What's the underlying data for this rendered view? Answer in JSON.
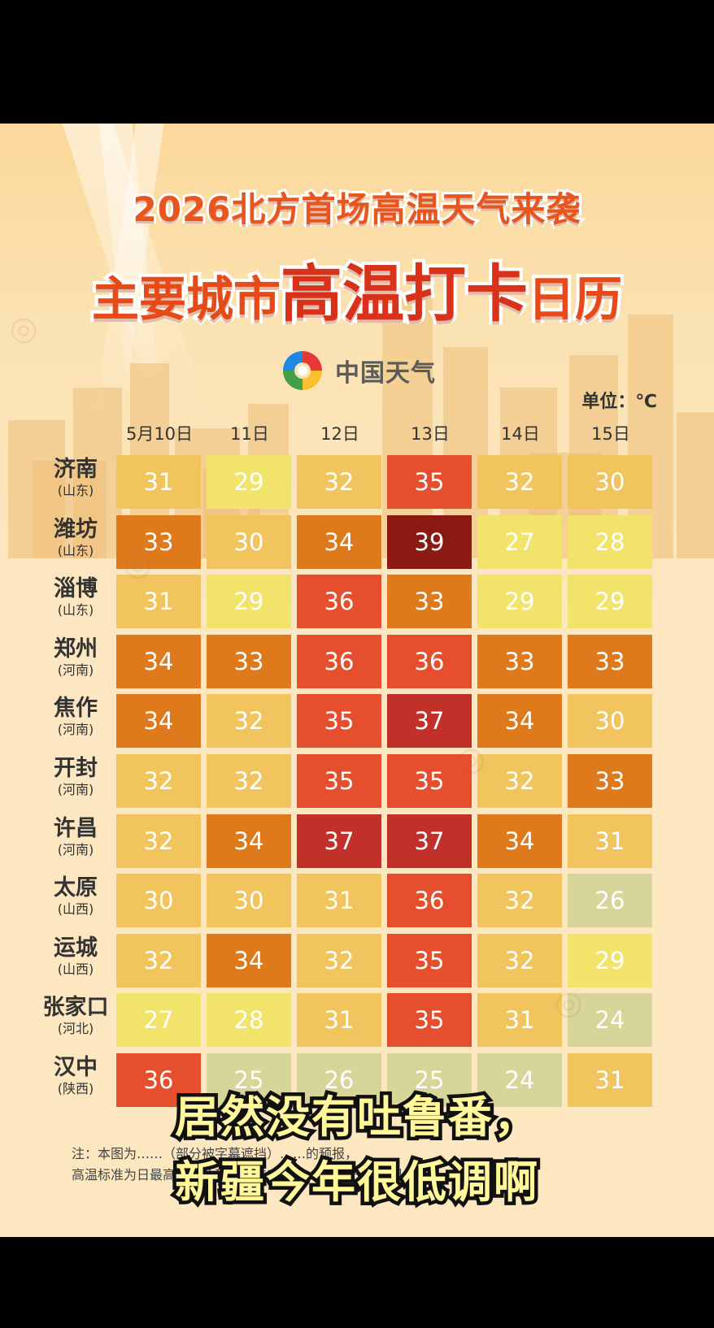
{
  "title_line1": "2026北方首场高温天气来袭",
  "title_line2_a": "主要城市",
  "title_line2_b": "高温打卡",
  "title_line2_c": "日历",
  "logo_text": "中国天气",
  "unit_label": "单位：℃",
  "note_line1": "注：本图为……（部分被字幕遮挡）……的预报，",
  "note_line2": "高温标准为日最高气温达到或超过35℃。中国天气网制图。",
  "caption_line1": "居然没有吐鲁番，",
  "caption_line2": "新疆今年很低调啊",
  "colors": {
    "scale": [
      "#d7d59a",
      "#f2e46a",
      "#f2c45e",
      "#de7a1c",
      "#e64f2e",
      "#c2302a",
      "#8b1a12"
    ]
  },
  "chart_data": {
    "type": "heatmap",
    "title": "2026北方首场高温天气来袭 主要城市高温打卡日历",
    "unit": "℃",
    "columns": [
      "5月10日",
      "11日",
      "12日",
      "13日",
      "14日",
      "15日"
    ],
    "rows": [
      {
        "city": "济南",
        "province": "(山东)",
        "values": [
          31,
          29,
          32,
          35,
          32,
          30
        ]
      },
      {
        "city": "潍坊",
        "province": "(山东)",
        "values": [
          33,
          30,
          34,
          39,
          27,
          28
        ]
      },
      {
        "city": "淄博",
        "province": "(山东)",
        "values": [
          31,
          29,
          36,
          33,
          29,
          29
        ]
      },
      {
        "city": "郑州",
        "province": "(河南)",
        "values": [
          34,
          33,
          36,
          36,
          33,
          33
        ]
      },
      {
        "city": "焦作",
        "province": "(河南)",
        "values": [
          34,
          32,
          35,
          37,
          34,
          30
        ]
      },
      {
        "city": "开封",
        "province": "(河南)",
        "values": [
          32,
          32,
          35,
          35,
          32,
          33
        ]
      },
      {
        "city": "许昌",
        "province": "(河南)",
        "values": [
          32,
          34,
          37,
          37,
          34,
          31
        ]
      },
      {
        "city": "太原",
        "province": "(山西)",
        "values": [
          30,
          30,
          31,
          36,
          32,
          26
        ]
      },
      {
        "city": "运城",
        "province": "(山西)",
        "values": [
          32,
          34,
          32,
          35,
          32,
          29
        ]
      },
      {
        "city": "张家口",
        "province": "(河北)",
        "values": [
          27,
          28,
          31,
          35,
          31,
          24
        ]
      },
      {
        "city": "汉中",
        "province": "(陕西)",
        "values": [
          36,
          25,
          26,
          25,
          24,
          31
        ]
      }
    ]
  }
}
